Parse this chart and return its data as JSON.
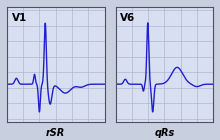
{
  "background_color": "#c8d0e0",
  "panel_bg": "#d8dff0",
  "grid_color": "#a8b4cc",
  "line_color": "#2020cc",
  "border_color": "#505060",
  "panels": [
    {
      "label": "V1",
      "sublabel": "rSR"
    },
    {
      "label": "V6",
      "sublabel": "qRs"
    }
  ],
  "fig_width": 2.2,
  "fig_height": 1.4,
  "dpi": 100
}
